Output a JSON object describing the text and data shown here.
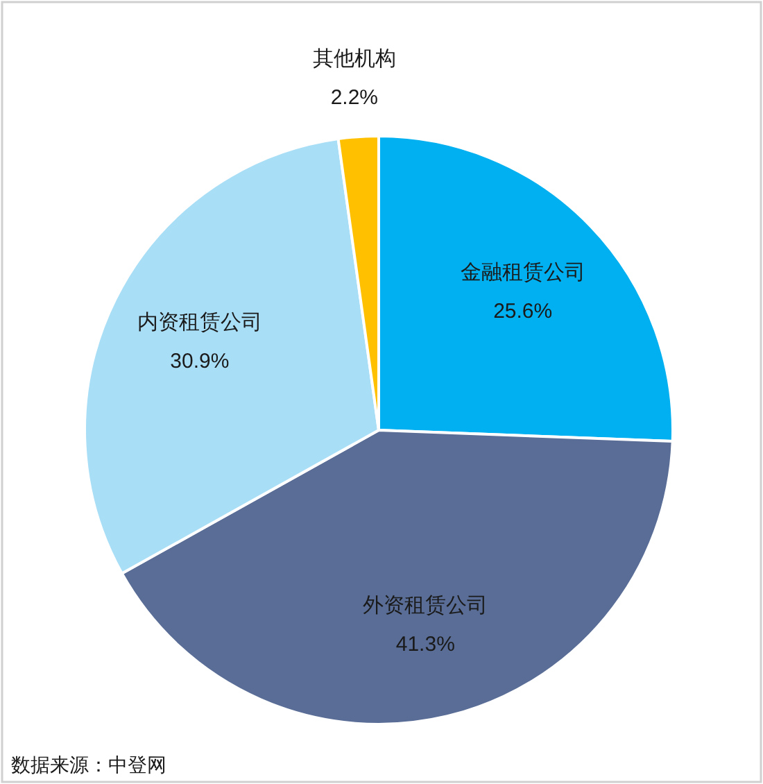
{
  "chart_data": {
    "type": "pie",
    "categories": [
      "金融租赁公司",
      "外资租赁公司",
      "内资租赁公司",
      "其他机构"
    ],
    "values": [
      25.6,
      41.3,
      30.9,
      2.2
    ],
    "colors": [
      "#00b0f0",
      "#596d96",
      "#a9def7",
      "#ffc000"
    ],
    "value_labels": [
      "25.6%",
      "41.3%",
      "30.9%",
      "2.2%"
    ],
    "legend": false,
    "annotations": [
      "数据来源：中登网"
    ]
  }
}
